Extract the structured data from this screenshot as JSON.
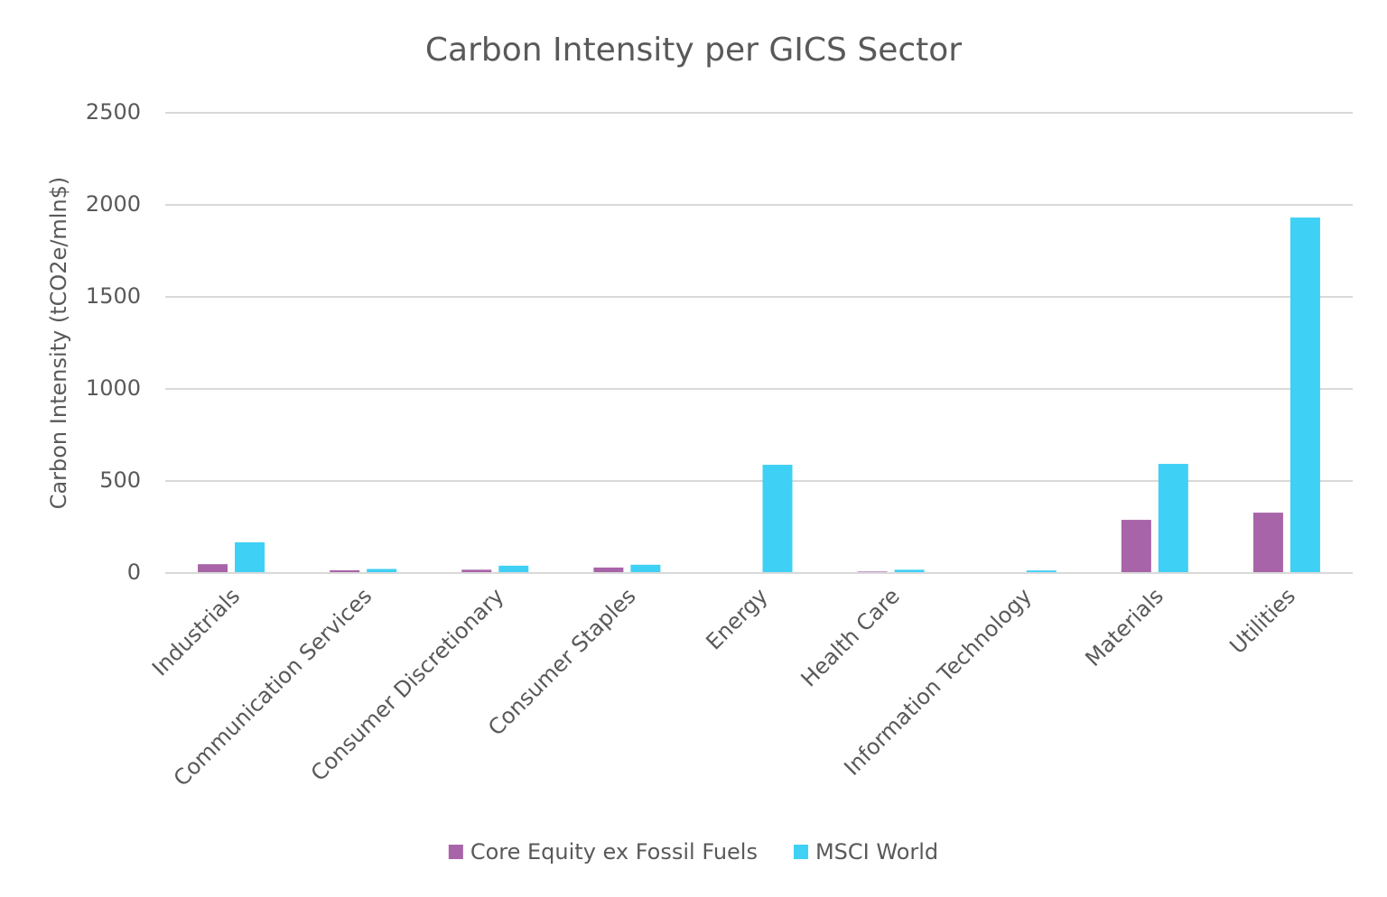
{
  "chart_data": {
    "type": "bar",
    "title": "Carbon Intensity per GICS Sector",
    "y_label": "Carbon Intensity (tCO2e/mln$)",
    "categories": [
      "Industrials",
      "Communication Services",
      "Consumer Discretionary",
      "Consumer Staples",
      "Energy",
      "Health Care",
      "Information Technology",
      "Materials",
      "Utilities"
    ],
    "series": [
      {
        "name": "Core Equity ex Fossil Fuels",
        "color": "#a864a8",
        "values": [
          48,
          15,
          18,
          30,
          0,
          8,
          0,
          289,
          328
        ]
      },
      {
        "name": "MSCI World",
        "color": "#3fd0f5",
        "values": [
          167,
          22,
          40,
          45,
          588,
          18,
          14,
          593,
          1931
        ]
      }
    ],
    "ylim": [
      0,
      2500
    ],
    "yticks": [
      0,
      500,
      1000,
      1500,
      2000,
      2500
    ],
    "grid": true,
    "legend": "bottom"
  }
}
